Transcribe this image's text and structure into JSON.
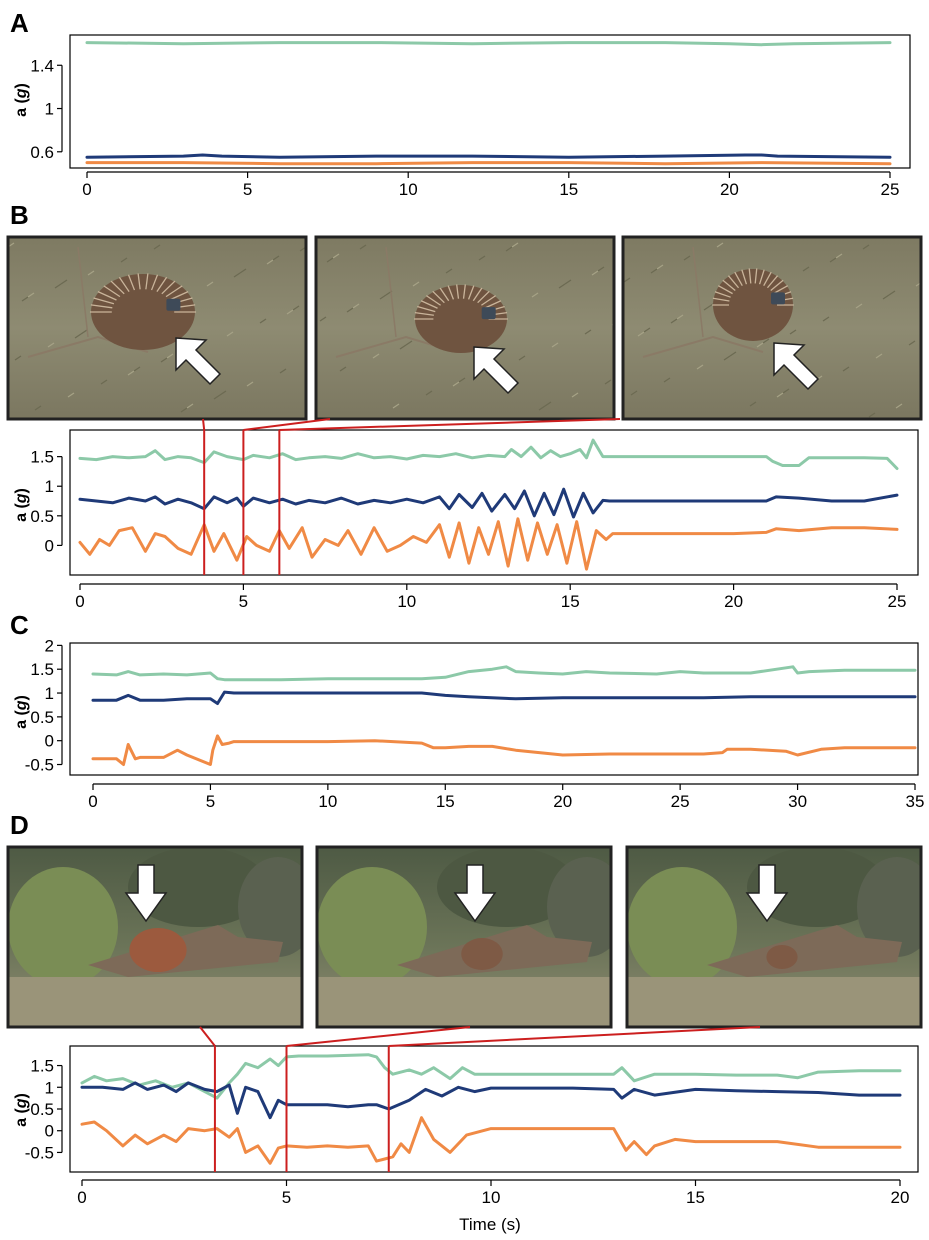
{
  "colors": {
    "green": "#8cc9a8",
    "navy": "#1f3a78",
    "orange": "#f08a45",
    "zoom_line": "#cc1f1f",
    "frame": "#222222",
    "ground": "#8c8a72",
    "bush": "#5d6e4c",
    "log": "#7d6a58",
    "echidna": "#6f5440",
    "sky": "#b9bcb2"
  },
  "labels": {
    "panel_a": "A",
    "panel_b": "B",
    "panel_c": "C",
    "panel_d": "D",
    "ylabel_a": "a",
    "ylabel_unit": "g",
    "xlabel_time": "Time (s)"
  },
  "photos": {
    "panel_b": [
      {
        "arrow": "up-left-arrow-icon",
        "subject": "echidna on dry grass with a tag"
      },
      {
        "arrow": "up-left-arrow-icon",
        "subject": "echidna on dry grass with a tag"
      },
      {
        "arrow": "up-left-arrow-icon",
        "subject": "echidna on dry grass with a tag"
      }
    ],
    "panel_d": [
      {
        "arrow": "down-arrow-icon",
        "subject": "echidna beside fallen log"
      },
      {
        "arrow": "down-arrow-icon",
        "subject": "echidna beside fallen log"
      },
      {
        "arrow": "down-arrow-icon",
        "subject": "echidna beside fallen log"
      }
    ]
  },
  "chart_data": [
    {
      "panel": "A",
      "type": "line",
      "xlim": [
        0,
        25
      ],
      "ylim": [
        0.45,
        1.68
      ],
      "xticks": [
        "0",
        "5",
        "10",
        "15",
        "20",
        "25"
      ],
      "yticks": [
        "0.6",
        "1",
        "1.4"
      ],
      "ytick_values": [
        0.6,
        1,
        1.4
      ],
      "xlabel": "",
      "ylabel": "a (g)",
      "series": [
        {
          "color": "green",
          "x": [
            0,
            3,
            6,
            9,
            12,
            15,
            18,
            20,
            21,
            22,
            25
          ],
          "y": [
            1.61,
            1.6,
            1.61,
            1.61,
            1.6,
            1.61,
            1.61,
            1.6,
            1.59,
            1.6,
            1.61
          ]
        },
        {
          "color": "navy",
          "x": [
            0,
            3,
            3.6,
            4.2,
            6,
            9,
            12,
            15,
            18,
            20.5,
            21,
            21.5,
            25
          ],
          "y": [
            0.55,
            0.56,
            0.57,
            0.56,
            0.55,
            0.56,
            0.56,
            0.55,
            0.56,
            0.57,
            0.57,
            0.56,
            0.55
          ]
        },
        {
          "color": "orange",
          "x": [
            0,
            3,
            6,
            9,
            12,
            15,
            18,
            21,
            25
          ],
          "y": [
            0.5,
            0.5,
            0.49,
            0.49,
            0.5,
            0.5,
            0.49,
            0.5,
            0.49
          ]
        }
      ]
    },
    {
      "panel": "B",
      "type": "line",
      "xlim": [
        0,
        25
      ],
      "ylim": [
        -0.5,
        1.95
      ],
      "xticks": [
        "0",
        "5",
        "10",
        "15",
        "20",
        "25"
      ],
      "yticks": [
        "0",
        "0.5",
        "1",
        "1.5"
      ],
      "ytick_values": [
        0,
        0.5,
        1,
        1.5
      ],
      "xlabel": "",
      "ylabel": "a (g)",
      "markers": [
        3.8,
        5.0,
        6.1
      ],
      "series": [
        {
          "color": "green",
          "x": [
            0,
            0.5,
            1,
            1.5,
            2,
            2.3,
            2.6,
            3,
            3.4,
            3.8,
            4.1,
            4.5,
            5,
            5.3,
            5.8,
            6.2,
            6.6,
            7,
            7.5,
            8,
            8.5,
            9,
            9.5,
            10,
            10.5,
            11,
            11.5,
            12,
            12.5,
            13,
            13.2,
            13.5,
            13.8,
            14.1,
            14.4,
            14.7,
            15,
            15.3,
            15.5,
            15.7,
            16,
            16.2,
            17,
            18,
            19,
            20,
            21,
            21.2,
            21.5,
            22,
            22.3,
            23,
            24,
            24.7,
            25
          ],
          "y": [
            1.47,
            1.45,
            1.5,
            1.48,
            1.5,
            1.6,
            1.45,
            1.5,
            1.48,
            1.4,
            1.58,
            1.5,
            1.45,
            1.52,
            1.48,
            1.55,
            1.45,
            1.48,
            1.5,
            1.47,
            1.55,
            1.48,
            1.5,
            1.46,
            1.52,
            1.5,
            1.55,
            1.48,
            1.52,
            1.5,
            1.62,
            1.5,
            1.66,
            1.48,
            1.6,
            1.5,
            1.55,
            1.62,
            1.48,
            1.78,
            1.5,
            1.5,
            1.5,
            1.5,
            1.5,
            1.5,
            1.5,
            1.42,
            1.35,
            1.35,
            1.48,
            1.48,
            1.48,
            1.47,
            1.3
          ]
        },
        {
          "color": "navy",
          "x": [
            0,
            0.5,
            1,
            1.5,
            2,
            2.3,
            2.6,
            3,
            3.4,
            3.8,
            4.1,
            4.5,
            4.8,
            5,
            5.3,
            5.8,
            6.2,
            6.6,
            7,
            7.5,
            8,
            8.5,
            9,
            9.5,
            10,
            10.5,
            11,
            11.3,
            11.6,
            12,
            12.3,
            12.6,
            13,
            13.3,
            13.6,
            13.9,
            14.2,
            14.5,
            14.8,
            15.1,
            15.4,
            15.7,
            16,
            16.2,
            17,
            18,
            19,
            20,
            21,
            21.3,
            22,
            23,
            24,
            25
          ],
          "y": [
            0.78,
            0.75,
            0.72,
            0.8,
            0.75,
            0.82,
            0.7,
            0.78,
            0.72,
            0.62,
            0.82,
            0.72,
            0.8,
            0.66,
            0.8,
            0.72,
            0.78,
            0.7,
            0.76,
            0.72,
            0.8,
            0.7,
            0.76,
            0.72,
            0.78,
            0.72,
            0.82,
            0.62,
            0.86,
            0.64,
            0.88,
            0.58,
            0.86,
            0.62,
            0.92,
            0.5,
            0.88,
            0.52,
            0.95,
            0.48,
            0.88,
            0.55,
            0.76,
            0.75,
            0.75,
            0.75,
            0.75,
            0.75,
            0.75,
            0.82,
            0.8,
            0.75,
            0.75,
            0.85
          ]
        },
        {
          "color": "orange",
          "x": [
            0,
            0.3,
            0.6,
            0.9,
            1.2,
            1.6,
            2,
            2.3,
            2.6,
            3,
            3.4,
            3.8,
            4.1,
            4.4,
            4.8,
            5.1,
            5.4,
            5.8,
            6.1,
            6.4,
            6.8,
            7.1,
            7.5,
            7.9,
            8.2,
            8.6,
            9,
            9.4,
            9.8,
            10.2,
            10.6,
            11,
            11.3,
            11.6,
            11.9,
            12.2,
            12.5,
            12.8,
            13.1,
            13.4,
            13.7,
            14,
            14.3,
            14.6,
            14.9,
            15.2,
            15.5,
            15.8,
            16.1,
            16.3,
            17,
            18,
            19,
            20,
            21,
            21.3,
            22,
            23,
            24,
            25
          ],
          "y": [
            0.05,
            -0.15,
            0.1,
            0.0,
            0.25,
            0.3,
            -0.1,
            0.2,
            0.15,
            -0.05,
            -0.15,
            0.35,
            -0.1,
            0.2,
            -0.25,
            0.15,
            0.0,
            -0.1,
            0.25,
            -0.05,
            0.3,
            -0.2,
            0.1,
            0.0,
            0.25,
            -0.15,
            0.3,
            -0.1,
            0.0,
            0.15,
            0.05,
            0.35,
            -0.2,
            0.38,
            -0.3,
            0.3,
            -0.15,
            0.4,
            -0.35,
            0.45,
            -0.25,
            0.38,
            -0.15,
            0.35,
            -0.3,
            0.4,
            -0.4,
            0.25,
            0.1,
            0.2,
            0.2,
            0.2,
            0.2,
            0.2,
            0.22,
            0.28,
            0.25,
            0.3,
            0.3,
            0.27
          ]
        }
      ]
    },
    {
      "panel": "C",
      "type": "line",
      "xlim": [
        0,
        35
      ],
      "ylim": [
        -0.72,
        2.05
      ],
      "xticks": [
        "0",
        "5",
        "10",
        "15",
        "20",
        "25",
        "30",
        "35"
      ],
      "yticks": [
        "-0.5",
        "0",
        "0.5",
        "1",
        "1.5",
        "2"
      ],
      "ytick_values": [
        -0.5,
        0,
        0.5,
        1,
        1.5,
        2
      ],
      "xlabel": "",
      "ylabel": "a (g)",
      "series": [
        {
          "color": "green",
          "x": [
            0,
            1,
            1.5,
            2,
            3,
            4,
            5,
            5.3,
            5.6,
            6,
            8,
            10,
            12,
            14,
            15,
            16,
            17,
            17.6,
            18,
            19,
            20,
            21,
            22,
            24,
            25,
            26,
            28,
            29.8,
            30,
            30.5,
            32,
            33,
            35
          ],
          "y": [
            1.4,
            1.38,
            1.45,
            1.38,
            1.4,
            1.38,
            1.42,
            1.3,
            1.28,
            1.28,
            1.28,
            1.3,
            1.3,
            1.3,
            1.33,
            1.45,
            1.5,
            1.55,
            1.45,
            1.42,
            1.4,
            1.45,
            1.42,
            1.4,
            1.45,
            1.42,
            1.42,
            1.55,
            1.42,
            1.45,
            1.48,
            1.48,
            1.48
          ]
        },
        {
          "color": "navy",
          "x": [
            0,
            1,
            1.5,
            2,
            3,
            4,
            5,
            5.3,
            5.6,
            6,
            8,
            10,
            12,
            14,
            15,
            16,
            18,
            20,
            22,
            24,
            26,
            28,
            30,
            32,
            35
          ],
          "y": [
            0.85,
            0.85,
            0.95,
            0.85,
            0.85,
            0.88,
            0.88,
            0.78,
            1.02,
            1.0,
            1.0,
            1.0,
            1.0,
            1.0,
            0.95,
            0.92,
            0.88,
            0.9,
            0.9,
            0.9,
            0.9,
            0.92,
            0.92,
            0.92,
            0.92
          ]
        },
        {
          "color": "orange",
          "x": [
            0,
            1,
            1.3,
            1.5,
            1.8,
            2,
            3,
            3.6,
            4,
            5,
            5.1,
            5.3,
            5.5,
            5.8,
            6,
            8,
            10,
            12,
            14,
            14.5,
            15,
            16,
            17,
            18,
            20,
            22,
            24,
            26,
            26.8,
            27,
            28,
            29.5,
            30,
            31,
            32,
            35
          ],
          "y": [
            -0.38,
            -0.38,
            -0.5,
            -0.08,
            -0.38,
            -0.35,
            -0.35,
            -0.2,
            -0.3,
            -0.5,
            -0.2,
            0.1,
            -0.08,
            -0.05,
            -0.02,
            -0.02,
            -0.02,
            0.0,
            -0.05,
            -0.15,
            -0.15,
            -0.12,
            -0.12,
            -0.2,
            -0.3,
            -0.28,
            -0.28,
            -0.28,
            -0.25,
            -0.18,
            -0.18,
            -0.22,
            -0.3,
            -0.18,
            -0.15,
            -0.15
          ]
        }
      ]
    },
    {
      "panel": "D",
      "type": "line",
      "xlim": [
        0,
        20
      ],
      "ylim": [
        -0.95,
        1.95
      ],
      "xticks": [
        "0",
        "5",
        "10",
        "15",
        "20"
      ],
      "yticks": [
        "-0.5",
        "0",
        "0.5",
        "1",
        "1.5"
      ],
      "ytick_values": [
        -0.5,
        0,
        0.5,
        1,
        1.5
      ],
      "xlabel": "Time (s)",
      "ylabel": "a (g)",
      "markers": [
        3.25,
        5.0,
        7.5
      ],
      "series": [
        {
          "color": "green",
          "x": [
            0,
            0.3,
            0.6,
            1,
            1.4,
            1.8,
            2.2,
            2.6,
            3,
            3.3,
            3.6,
            3.8,
            4,
            4.3,
            4.6,
            4.8,
            5,
            5.3,
            6,
            7,
            7.2,
            7.4,
            7.6,
            8,
            8.3,
            8.6,
            9,
            9.3,
            9.6,
            10,
            11,
            12,
            13,
            13.2,
            13.5,
            14,
            15,
            16,
            17,
            17.5,
            18,
            19,
            20
          ],
          "y": [
            1.1,
            1.25,
            1.15,
            1.2,
            1.05,
            1.15,
            1.0,
            1.1,
            0.9,
            0.75,
            1.1,
            1.3,
            1.55,
            1.45,
            1.65,
            1.5,
            1.7,
            1.72,
            1.72,
            1.75,
            1.7,
            1.45,
            1.3,
            1.4,
            1.3,
            1.45,
            1.2,
            1.45,
            1.3,
            1.3,
            1.3,
            1.3,
            1.3,
            1.45,
            1.15,
            1.3,
            1.3,
            1.28,
            1.28,
            1.22,
            1.35,
            1.38,
            1.38
          ]
        },
        {
          "color": "navy",
          "x": [
            0,
            0.5,
            1,
            1.3,
            1.6,
            2,
            2.3,
            2.6,
            3,
            3.3,
            3.6,
            3.8,
            4,
            4.3,
            4.6,
            4.8,
            5,
            5.5,
            6,
            6.5,
            7,
            7.2,
            7.5,
            8,
            8.4,
            8.8,
            9.2,
            9.6,
            10,
            11,
            12,
            13,
            13.2,
            13.5,
            14,
            15,
            16,
            17,
            18,
            19,
            20
          ],
          "y": [
            1.0,
            1.0,
            0.95,
            1.1,
            0.95,
            1.05,
            0.9,
            1.1,
            0.95,
            0.9,
            1.05,
            0.4,
            1.0,
            0.9,
            0.3,
            0.7,
            0.6,
            0.6,
            0.6,
            0.55,
            0.6,
            0.6,
            0.5,
            0.7,
            0.95,
            0.8,
            1.0,
            0.9,
            0.98,
            0.98,
            0.98,
            0.95,
            0.75,
            0.95,
            0.82,
            0.95,
            0.92,
            0.9,
            0.88,
            0.82,
            0.82
          ]
        },
        {
          "color": "orange",
          "x": [
            0,
            0.3,
            0.6,
            1,
            1.3,
            1.6,
            2,
            2.3,
            2.6,
            3,
            3.3,
            3.6,
            3.8,
            4,
            4.3,
            4.6,
            4.8,
            5,
            5.5,
            6,
            6.5,
            7,
            7.2,
            7.4,
            7.6,
            7.8,
            8,
            8.3,
            8.6,
            9,
            9.4,
            10,
            11,
            12,
            13,
            13.3,
            13.5,
            13.8,
            14,
            14.5,
            15,
            16,
            17,
            18,
            19,
            20
          ],
          "y": [
            0.15,
            0.2,
            0.0,
            -0.35,
            -0.1,
            -0.3,
            -0.1,
            -0.25,
            0.05,
            0.0,
            0.05,
            -0.15,
            0.05,
            -0.5,
            -0.35,
            -0.75,
            -0.4,
            -0.35,
            -0.38,
            -0.35,
            -0.38,
            -0.35,
            -0.7,
            -0.65,
            -0.6,
            -0.3,
            -0.5,
            0.3,
            -0.2,
            -0.5,
            -0.1,
            0.05,
            0.05,
            0.05,
            0.05,
            -0.45,
            -0.25,
            -0.55,
            -0.35,
            -0.2,
            -0.25,
            -0.25,
            -0.25,
            -0.38,
            -0.38,
            -0.38
          ]
        }
      ]
    }
  ]
}
